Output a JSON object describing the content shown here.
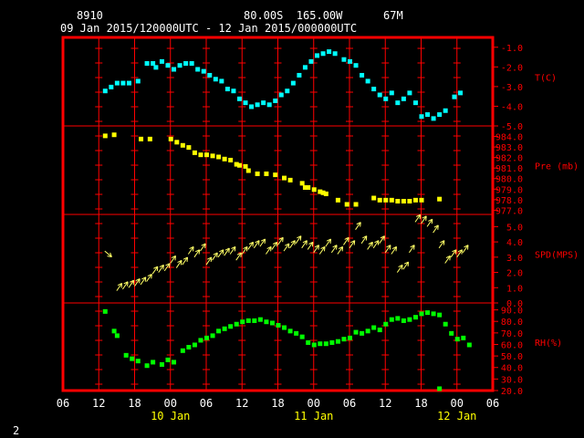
{
  "header": {
    "station": "8910",
    "location": "80.00S  165.00W",
    "elevation": "67M",
    "period": "09 Jan 2015/120000UTC - 12 Jan 2015/000000UTC"
  },
  "page_number": "2",
  "colors": {
    "frame": "#ff0000",
    "ticks": "#ff0000",
    "text": "#ffffff",
    "temperature": "#00ffff",
    "pressure": "#ffff00",
    "wind": "#ffff66",
    "humidity": "#00ff00"
  },
  "chart_data": {
    "type": "scatter",
    "x_unit": "hours since 09 Jan 2015 00UTC",
    "x_range": [
      6,
      78
    ],
    "x_tick_labels": [
      "06",
      "12",
      "18",
      "00",
      "06",
      "12",
      "18",
      "00",
      "06",
      "12",
      "18",
      "00",
      "06"
    ],
    "x_tick_hours": [
      6,
      12,
      18,
      24,
      30,
      36,
      42,
      48,
      54,
      60,
      66,
      72,
      78
    ],
    "date_labels": [
      {
        "text": "10 Jan",
        "hour": 24
      },
      {
        "text": "11 Jan",
        "hour": 48
      },
      {
        "text": "12 Jan",
        "hour": 72
      }
    ],
    "panels": [
      {
        "key": "temperature",
        "label": "T(C)",
        "ylim": [
          -5.0,
          -0.5
        ],
        "tick_values": [
          -1.0,
          -2.0,
          -3.0,
          -4.0,
          -5.0
        ],
        "tick_labels": [
          "-1.0",
          "-2.0",
          "-3.0",
          "-4.0",
          "-5.0"
        ],
        "points": [
          [
            13,
            -3.2
          ],
          [
            14,
            -3.0
          ],
          [
            15,
            -2.8
          ],
          [
            16,
            -2.8
          ],
          [
            17,
            -2.8
          ],
          [
            18.5,
            -2.7
          ],
          [
            20,
            -1.8
          ],
          [
            21,
            -1.8
          ],
          [
            21.5,
            -2.0
          ],
          [
            22.5,
            -1.7
          ],
          [
            23.5,
            -1.9
          ],
          [
            24.5,
            -2.1
          ],
          [
            25.5,
            -1.9
          ],
          [
            26.5,
            -1.8
          ],
          [
            27.5,
            -1.8
          ],
          [
            28.5,
            -2.1
          ],
          [
            29.5,
            -2.2
          ],
          [
            30.5,
            -2.4
          ],
          [
            31.5,
            -2.6
          ],
          [
            32.5,
            -2.7
          ],
          [
            33.5,
            -3.1
          ],
          [
            34.5,
            -3.2
          ],
          [
            35.5,
            -3.6
          ],
          [
            36.5,
            -3.8
          ],
          [
            37.5,
            -4.0
          ],
          [
            38.5,
            -3.9
          ],
          [
            39.5,
            -3.8
          ],
          [
            40.5,
            -3.9
          ],
          [
            41.5,
            -3.7
          ],
          [
            42.5,
            -3.4
          ],
          [
            43.5,
            -3.2
          ],
          [
            44.5,
            -2.8
          ],
          [
            45.5,
            -2.4
          ],
          [
            46.5,
            -2.0
          ],
          [
            47.5,
            -1.7
          ],
          [
            48.5,
            -1.4
          ],
          [
            49.5,
            -1.3
          ],
          [
            50.5,
            -1.2
          ],
          [
            51.5,
            -1.3
          ],
          [
            53,
            -1.6
          ],
          [
            54,
            -1.7
          ],
          [
            55,
            -1.9
          ],
          [
            56,
            -2.4
          ],
          [
            57,
            -2.7
          ],
          [
            58,
            -3.1
          ],
          [
            59,
            -3.4
          ],
          [
            60,
            -3.6
          ],
          [
            61,
            -3.3
          ],
          [
            62,
            -3.8
          ],
          [
            63,
            -3.6
          ],
          [
            64,
            -3.3
          ],
          [
            65,
            -3.8
          ],
          [
            66,
            -4.5
          ],
          [
            67,
            -4.4
          ],
          [
            68,
            -4.6
          ],
          [
            69,
            -4.4
          ],
          [
            70,
            -4.2
          ],
          [
            71.5,
            -3.5
          ],
          [
            72.5,
            -3.3
          ]
        ]
      },
      {
        "key": "pressure",
        "label": "Pre (mb)",
        "ylim": [
          976.6,
          985.0
        ],
        "tick_values": [
          984,
          983,
          982,
          981,
          980,
          979,
          978,
          977
        ],
        "tick_labels": [
          "984.0",
          "983.0",
          "982.0",
          "981.0",
          "980.0",
          "979.0",
          "978.0",
          "977.0"
        ],
        "points": [
          [
            13,
            984.1
          ],
          [
            14.5,
            984.2
          ],
          [
            19,
            983.8
          ],
          [
            20.5,
            983.8
          ],
          [
            24,
            983.8
          ],
          [
            25,
            983.5
          ],
          [
            26,
            983.2
          ],
          [
            27,
            983.0
          ],
          [
            28,
            982.5
          ],
          [
            29,
            982.3
          ],
          [
            30,
            982.3
          ],
          [
            31,
            982.2
          ],
          [
            32,
            982.1
          ],
          [
            33,
            981.9
          ],
          [
            34,
            981.8
          ],
          [
            35,
            981.4
          ],
          [
            35.5,
            981.3
          ],
          [
            36.5,
            981.2
          ],
          [
            37,
            980.8
          ],
          [
            38.5,
            980.5
          ],
          [
            40,
            980.5
          ],
          [
            41.5,
            980.4
          ],
          [
            43,
            980.1
          ],
          [
            44,
            979.9
          ],
          [
            46,
            979.6
          ],
          [
            46.5,
            979.2
          ],
          [
            47,
            979.2
          ],
          [
            48,
            979.0
          ],
          [
            49,
            978.8
          ],
          [
            49.5,
            978.7
          ],
          [
            50,
            978.6
          ],
          [
            52,
            978.0
          ],
          [
            53.5,
            977.6
          ],
          [
            55,
            977.6
          ],
          [
            58,
            978.2
          ],
          [
            59,
            978.0
          ],
          [
            60,
            978.0
          ],
          [
            61,
            978.0
          ],
          [
            62,
            977.9
          ],
          [
            63,
            977.9
          ],
          [
            64,
            977.9
          ],
          [
            65,
            978.0
          ],
          [
            66,
            978.0
          ],
          [
            69,
            978.1
          ]
        ]
      },
      {
        "key": "wind",
        "label": "SPD(MPS)",
        "ylim": [
          0,
          5.8
        ],
        "tick_values": [
          5,
          4,
          3,
          2,
          1,
          0
        ],
        "tick_labels": [
          "5.0",
          "4.0",
          "3.0",
          "2.0",
          "1.0",
          "0.0"
        ],
        "points": [
          [
            13,
            3.4,
            1
          ],
          [
            15,
            0.8,
            1
          ],
          [
            16,
            0.9,
            1
          ],
          [
            17,
            1.0,
            1
          ],
          [
            18,
            1.1,
            1
          ],
          [
            19,
            1.2,
            1
          ],
          [
            20,
            1.4,
            1
          ],
          [
            21,
            1.9,
            1
          ],
          [
            22,
            2.0,
            1
          ],
          [
            23,
            2.1,
            1
          ],
          [
            24,
            2.6,
            1
          ],
          [
            25,
            2.3,
            1
          ],
          [
            26,
            2.5,
            1
          ],
          [
            27,
            3.2,
            1
          ],
          [
            28,
            3.0,
            1
          ],
          [
            29,
            3.4,
            1
          ],
          [
            30,
            2.5,
            1
          ],
          [
            31,
            2.8,
            1
          ],
          [
            32,
            3.0,
            1
          ],
          [
            33,
            3.1,
            1
          ],
          [
            34,
            3.2,
            1
          ],
          [
            35,
            2.8,
            1
          ],
          [
            36,
            3.2,
            1
          ],
          [
            37,
            3.5,
            1
          ],
          [
            38,
            3.6,
            1
          ],
          [
            39,
            3.7,
            1
          ],
          [
            40,
            3.2,
            1
          ],
          [
            41,
            3.5,
            1
          ],
          [
            42,
            3.8,
            1
          ],
          [
            43,
            3.4,
            1
          ],
          [
            44,
            3.6,
            1
          ],
          [
            45,
            3.9,
            1
          ],
          [
            46,
            3.6,
            1
          ],
          [
            47,
            3.5,
            1
          ],
          [
            48,
            3.3,
            1
          ],
          [
            49,
            3.2,
            1
          ],
          [
            50,
            3.7,
            1
          ],
          [
            51,
            3.3,
            1
          ],
          [
            52,
            3.2,
            1
          ],
          [
            53,
            3.8,
            1
          ],
          [
            54,
            3.6,
            1
          ],
          [
            55,
            4.8,
            1
          ],
          [
            56,
            3.9,
            1
          ],
          [
            57,
            3.5,
            1
          ],
          [
            58,
            3.6,
            1
          ],
          [
            59,
            3.9,
            1
          ],
          [
            60,
            3.3,
            1
          ],
          [
            61,
            3.2,
            1
          ],
          [
            62,
            2.0,
            1
          ],
          [
            63,
            2.2,
            1
          ],
          [
            64,
            3.3,
            1
          ],
          [
            65,
            5.3,
            1
          ],
          [
            66,
            5.2,
            1
          ],
          [
            67,
            5.0,
            1
          ],
          [
            68,
            4.6,
            1
          ],
          [
            69,
            3.6,
            1
          ],
          [
            70,
            2.6,
            1
          ],
          [
            71,
            3.0,
            1
          ],
          [
            72,
            3.0,
            1
          ],
          [
            73,
            3.3,
            1
          ]
        ]
      },
      {
        "key": "humidity",
        "label": "RH(%)",
        "ylim": [
          20,
          96
        ],
        "tick_values": [
          90,
          80,
          70,
          60,
          50,
          40,
          30,
          20
        ],
        "tick_labels": [
          "90.0",
          "80.0",
          "70.0",
          "60.0",
          "50.0",
          "40.0",
          "30.0",
          "20.0"
        ],
        "points": [
          [
            13,
            89
          ],
          [
            14.5,
            72
          ],
          [
            15,
            68
          ],
          [
            16.5,
            51
          ],
          [
            17.5,
            48
          ],
          [
            18.5,
            46
          ],
          [
            20,
            42
          ],
          [
            21,
            45
          ],
          [
            22.5,
            43
          ],
          [
            23.5,
            47
          ],
          [
            24.5,
            45
          ],
          [
            26,
            55
          ],
          [
            27,
            58
          ],
          [
            28,
            60
          ],
          [
            29,
            64
          ],
          [
            30,
            66
          ],
          [
            31,
            68
          ],
          [
            32,
            72
          ],
          [
            33,
            74
          ],
          [
            34,
            76
          ],
          [
            35,
            78
          ],
          [
            36,
            80
          ],
          [
            37,
            81
          ],
          [
            38,
            81
          ],
          [
            39,
            82
          ],
          [
            40,
            80
          ],
          [
            41,
            79
          ],
          [
            42,
            77
          ],
          [
            43,
            75
          ],
          [
            44,
            72
          ],
          [
            45,
            70
          ],
          [
            46,
            67
          ],
          [
            47,
            62
          ],
          [
            48,
            60
          ],
          [
            49,
            61
          ],
          [
            50,
            61
          ],
          [
            51,
            62
          ],
          [
            52,
            63
          ],
          [
            53,
            65
          ],
          [
            54,
            66
          ],
          [
            55,
            71
          ],
          [
            56,
            70
          ],
          [
            57,
            72
          ],
          [
            58,
            75
          ],
          [
            59,
            73
          ],
          [
            60,
            78
          ],
          [
            61,
            82
          ],
          [
            62,
            83
          ],
          [
            63,
            81
          ],
          [
            64,
            82
          ],
          [
            65,
            84
          ],
          [
            66,
            87
          ],
          [
            67,
            88
          ],
          [
            68,
            87
          ],
          [
            69,
            86
          ],
          [
            70,
            78
          ],
          [
            71,
            70
          ],
          [
            72,
            65
          ],
          [
            73,
            66
          ],
          [
            74,
            60
          ],
          [
            69,
            22
          ]
        ]
      }
    ]
  }
}
